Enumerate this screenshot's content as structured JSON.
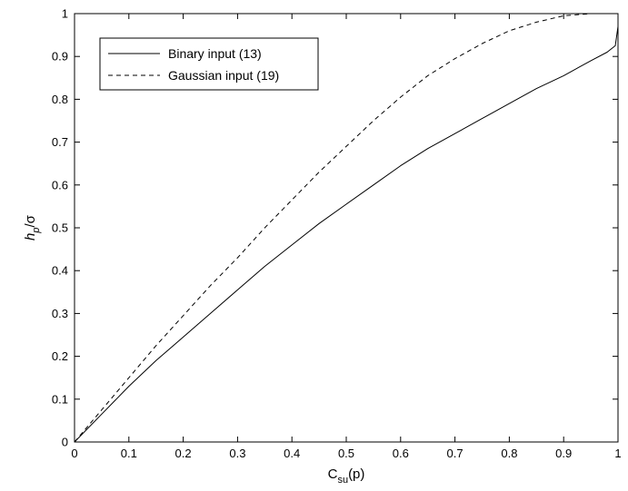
{
  "chart_data": {
    "type": "line",
    "xlabel": {
      "base": "C",
      "sub": "su",
      "suffix": "(p)"
    },
    "ylabel": {
      "base": "h",
      "sub": "p",
      "suffix": "/σ"
    },
    "xlim": [
      0,
      1
    ],
    "ylim": [
      0,
      1
    ],
    "xticks": [
      "0",
      "0.1",
      "0.2",
      "0.3",
      "0.4",
      "0.5",
      "0.6",
      "0.7",
      "0.8",
      "0.9",
      "1"
    ],
    "yticks": [
      "0",
      "0.1",
      "0.2",
      "0.3",
      "0.4",
      "0.5",
      "0.6",
      "0.7",
      "0.8",
      "0.9",
      "1"
    ],
    "grid": false,
    "legend_position": "top-left",
    "series": [
      {
        "name": "Binary input (13)",
        "style": "solid",
        "color": "#000000",
        "x": [
          0,
          0.05,
          0.1,
          0.15,
          0.2,
          0.25,
          0.3,
          0.35,
          0.4,
          0.45,
          0.5,
          0.55,
          0.6,
          0.65,
          0.7,
          0.75,
          0.8,
          0.85,
          0.9,
          0.95,
          0.98,
          0.995,
          1.0
        ],
        "y": [
          0,
          0.065,
          0.13,
          0.19,
          0.245,
          0.3,
          0.355,
          0.41,
          0.46,
          0.51,
          0.555,
          0.6,
          0.645,
          0.685,
          0.72,
          0.755,
          0.79,
          0.825,
          0.855,
          0.89,
          0.91,
          0.925,
          0.97
        ]
      },
      {
        "name": "Gaussian input (19)",
        "style": "dashed",
        "color": "#000000",
        "x": [
          0,
          0.05,
          0.1,
          0.15,
          0.2,
          0.25,
          0.3,
          0.35,
          0.4,
          0.45,
          0.5,
          0.55,
          0.6,
          0.65,
          0.7,
          0.75,
          0.8,
          0.85,
          0.9,
          0.95,
          1.0
        ],
        "y": [
          0,
          0.075,
          0.15,
          0.225,
          0.295,
          0.365,
          0.43,
          0.5,
          0.565,
          0.63,
          0.69,
          0.75,
          0.805,
          0.855,
          0.895,
          0.93,
          0.96,
          0.98,
          0.995,
          1.0,
          1.0
        ]
      }
    ]
  }
}
